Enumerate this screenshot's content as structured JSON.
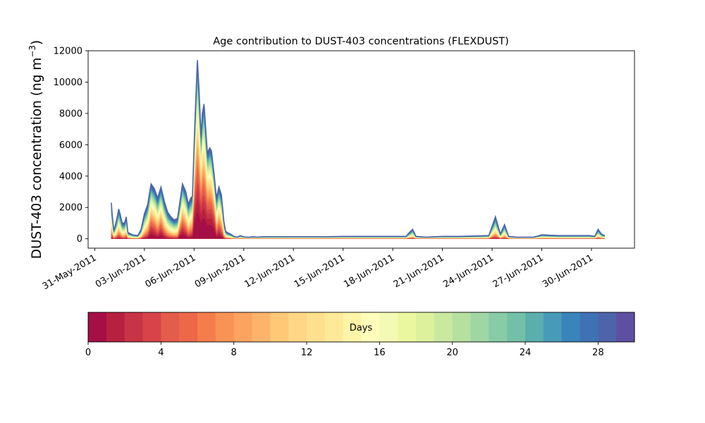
{
  "chart_data": {
    "type": "area",
    "stacked": true,
    "title": "Age contribution to DUST-403 concentrations (FLEXDUST)",
    "ylabel_main": "DUST-403 concentration (ng m",
    "ylabel_sup": "−3",
    "ylabel_end": ")",
    "xlabel": "",
    "ylim": [
      -600,
      12000
    ],
    "yticks": [
      0,
      2000,
      4000,
      6000,
      8000,
      10000,
      12000
    ],
    "ytick_labels": [
      "0",
      "2000",
      "4000",
      "6000",
      "8000",
      "10000",
      "12000"
    ],
    "xlim_days": [
      -0.4,
      32.6
    ],
    "xticks_days": [
      0,
      3,
      6,
      9,
      12,
      15,
      18,
      21,
      24,
      27,
      30
    ],
    "xtick_labels": [
      "31-May-2011",
      "03-Jun-2011",
      "06-Jun-2011",
      "09-Jun-2011",
      "12-Jun-2011",
      "15-Jun-2011",
      "18-Jun-2011",
      "21-Jun-2011",
      "24-Jun-2011",
      "27-Jun-2011",
      "30-Jun-2011"
    ],
    "x_unit": "days since 31-May-2011",
    "total_concentration": {
      "x": [
        1.0,
        1.05,
        1.15,
        1.3,
        1.45,
        1.55,
        1.65,
        1.8,
        1.9,
        2.0,
        2.3,
        2.6,
        2.8,
        3.0,
        3.2,
        3.4,
        3.6,
        3.8,
        4.0,
        4.2,
        4.4,
        4.6,
        4.8,
        5.0,
        5.3,
        5.5,
        5.65,
        5.8,
        5.9,
        6.05,
        6.2,
        6.3,
        6.42,
        6.5,
        6.6,
        6.8,
        6.95,
        7.05,
        7.2,
        7.35,
        7.5,
        7.65,
        7.8,
        7.9,
        8.0,
        8.2,
        8.4,
        8.6,
        8.8,
        9.0,
        9.3,
        9.6,
        9.8,
        10.0,
        10.2,
        10.5,
        11.0,
        11.5,
        12.0,
        13.0,
        14.0,
        15.0,
        16.0,
        17.0,
        18.0,
        18.8,
        19.0,
        19.2,
        19.4,
        20.0,
        21.0,
        22.0,
        23.0,
        23.8,
        24.2,
        24.5,
        24.75,
        25.0,
        25.5,
        26.0,
        26.5,
        27.0,
        28.0,
        29.0,
        29.5,
        29.9,
        30.2,
        30.4,
        30.6,
        30.8
      ],
      "values": [
        2300,
        1600,
        500,
        1100,
        1900,
        1500,
        1000,
        1000,
        1400,
        400,
        250,
        200,
        600,
        1600,
        2200,
        3500,
        3200,
        2600,
        3300,
        2400,
        1700,
        1400,
        1200,
        1300,
        3500,
        3000,
        2200,
        2600,
        2700,
        7500,
        11400,
        9500,
        6500,
        8000,
        8600,
        5500,
        5800,
        5600,
        4200,
        2600,
        3300,
        2800,
        1100,
        500,
        400,
        300,
        150,
        100,
        200,
        120,
        100,
        130,
        100,
        120,
        130,
        130,
        130,
        130,
        130,
        130,
        130,
        150,
        150,
        150,
        150,
        150,
        400,
        600,
        150,
        100,
        150,
        150,
        180,
        200,
        1400,
        300,
        900,
        150,
        100,
        100,
        100,
        250,
        200,
        200,
        200,
        200,
        150,
        600,
        300,
        200
      ]
    },
    "colorbar": {
      "label": "Days",
      "min": 0,
      "max": 30,
      "ticks": [
        0,
        4,
        8,
        12,
        16,
        20,
        24,
        28
      ],
      "tick_labels": [
        "0",
        "4",
        "8",
        "12",
        "16",
        "20",
        "24",
        "28"
      ],
      "colors": [
        "#a50f45",
        "#b7203f",
        "#c73446",
        "#d8434a",
        "#e45c4a",
        "#ec6849",
        "#f57d4b",
        "#f99355",
        "#fca360",
        "#fdb46a",
        "#fec877",
        "#fed685",
        "#fee08e",
        "#fee999",
        "#fff4a8",
        "#fefdba",
        "#f3fab4",
        "#eaf79e",
        "#ddf19d",
        "#c9e9a0",
        "#b5e09e",
        "#9fd6a4",
        "#87cca4",
        "#72c1a6",
        "#5aafad",
        "#489bb8",
        "#3984bb",
        "#3f72b4",
        "#4d64ab",
        "#5e4fa2"
      ]
    }
  }
}
